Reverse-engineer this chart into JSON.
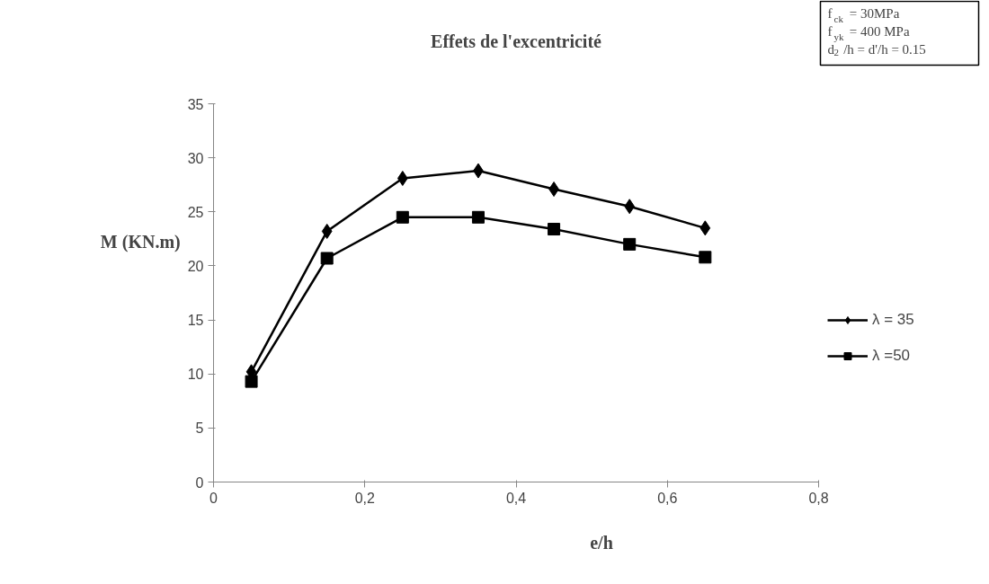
{
  "chart_data": {
    "type": "line",
    "title": "Effets de l'excentricité",
    "xlabel": "e/h",
    "ylabel": "M (KN.m)",
    "annotations": [
      "f$_{ck}$ = 30MPa",
      "f$_{yk}$ = 400 MPa",
      "d$_{2}$/h = d'/h = 0.15"
    ],
    "x": [
      0.05,
      0.15,
      0.25,
      0.35,
      0.45,
      0.55,
      0.65
    ],
    "series": [
      {
        "name": "λ = 35",
        "color": "#000000",
        "marker": "diamond",
        "values": [
          10.2,
          23.2,
          28.1,
          28.8,
          27.1,
          25.5,
          23.5
        ]
      },
      {
        "name": "λ =50",
        "color": "#000000",
        "marker": "square",
        "values": [
          9.3,
          20.7,
          24.5,
          24.5,
          23.4,
          22.0,
          20.8
        ]
      }
    ],
    "xlim": [
      0,
      0.8
    ],
    "xticks": [
      {
        "value": 0,
        "label": "0"
      },
      {
        "value": 0.2,
        "label": "0,2"
      },
      {
        "value": 0.4,
        "label": "0,4"
      },
      {
        "value": 0.6,
        "label": "0,6"
      },
      {
        "value": 0.8,
        "label": "0,8"
      }
    ],
    "ylim": [
      0,
      35
    ],
    "yticks": [
      0,
      5,
      10,
      15,
      20,
      25,
      30,
      35
    ],
    "grid": false,
    "legend": "right",
    "line_style": "solid"
  }
}
